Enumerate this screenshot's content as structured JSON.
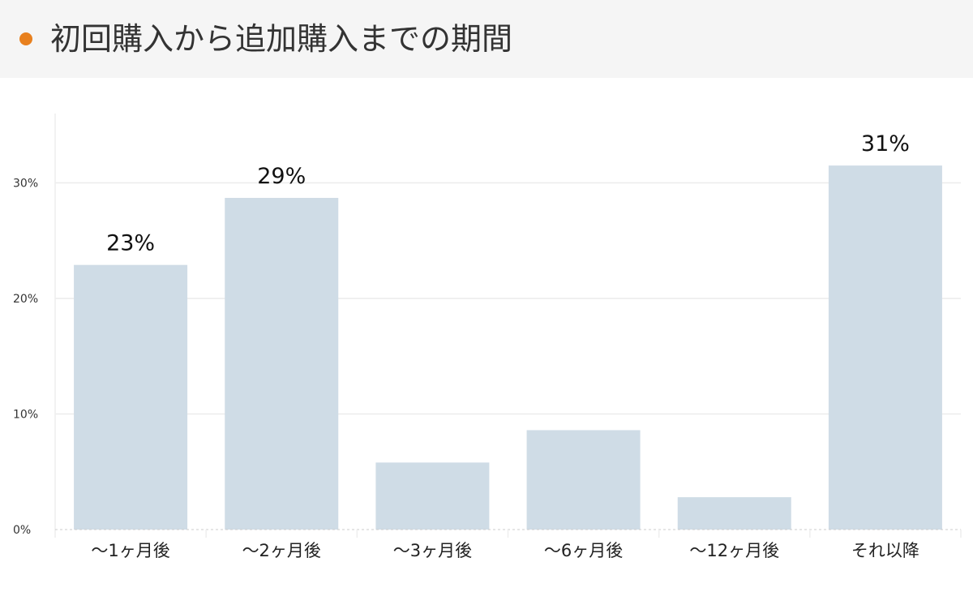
{
  "header": {
    "title": "初回購入から追加購入までの期間",
    "dot_color": "#e8801e"
  },
  "chart_data": {
    "type": "bar",
    "title": "初回購入から追加購入までの期間",
    "categories": [
      "〜1ヶ月後",
      "〜2ヶ月後",
      "〜3ヶ月後",
      "〜6ヶ月後",
      "〜12ヶ月後",
      "それ以降"
    ],
    "values": [
      22.9,
      28.7,
      5.8,
      8.6,
      2.8,
      31.5
    ],
    "data_labels": [
      "23%",
      "29%",
      "",
      "",
      "",
      "31%"
    ],
    "ylim": [
      0,
      36
    ],
    "yticks": [
      0,
      10,
      20,
      30
    ],
    "ytick_labels": [
      "0%",
      "10%",
      "20%",
      "30%"
    ],
    "xlabel": "",
    "ylabel": "",
    "grid": true,
    "bar_color": "#cfdce6",
    "grid_color": "#ececec"
  }
}
